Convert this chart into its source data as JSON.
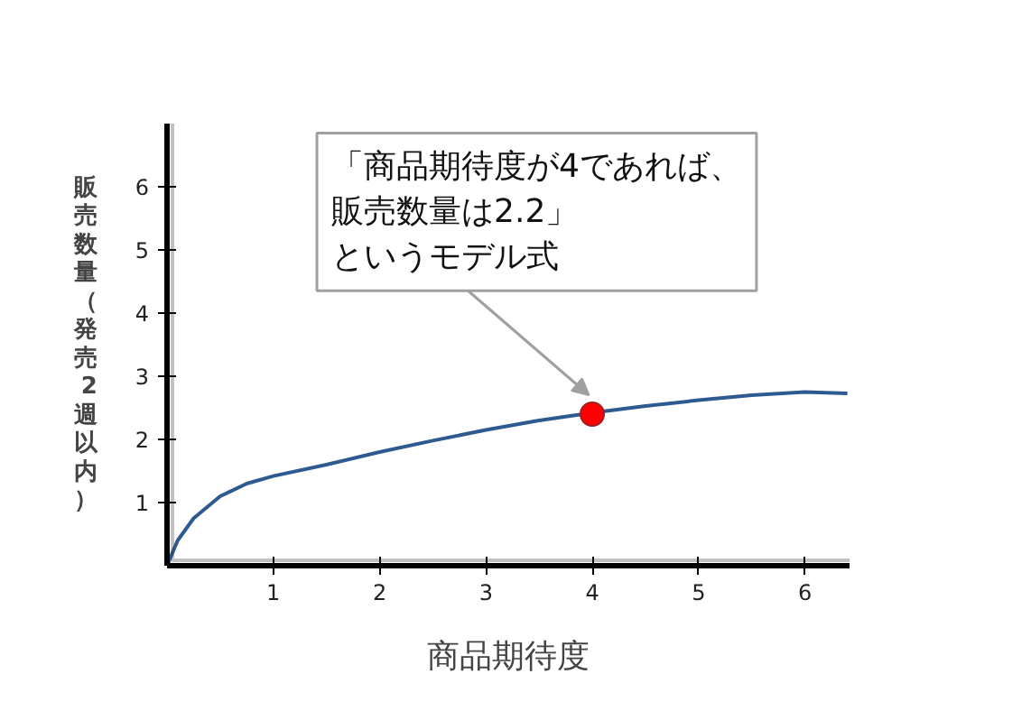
{
  "chart_data": {
    "type": "line",
    "xlabel": "商品期待度",
    "ylabel": "販売数量（発売2週以内）",
    "xlim": [
      0,
      6.42
    ],
    "ylim": [
      0,
      7
    ],
    "xticks": [
      1,
      2,
      3,
      4,
      5,
      6
    ],
    "yticks": [
      1,
      2,
      3,
      4,
      5,
      6
    ],
    "grid": false,
    "series": [
      {
        "color": "#2e5b8f",
        "x": [
          0,
          0.1,
          0.25,
          0.5,
          0.75,
          1,
          1.5,
          2,
          2.5,
          3,
          3.5,
          4,
          4.5,
          5,
          5.5,
          6,
          6.4
        ],
        "values": [
          0,
          0.4,
          0.75,
          1.1,
          1.3,
          1.42,
          1.6,
          1.8,
          1.98,
          2.15,
          2.3,
          2.42,
          2.53,
          2.62,
          2.7,
          2.75,
          2.73
        ]
      },
      {
        "type": "scatter",
        "color": "#ff0000",
        "marker": "circle",
        "x": [
          4
        ],
        "values": [
          2.4
        ]
      }
    ],
    "annotations": [
      "「商品期待度が4であれば、販売数量は2.2」というモデル式"
    ]
  }
}
